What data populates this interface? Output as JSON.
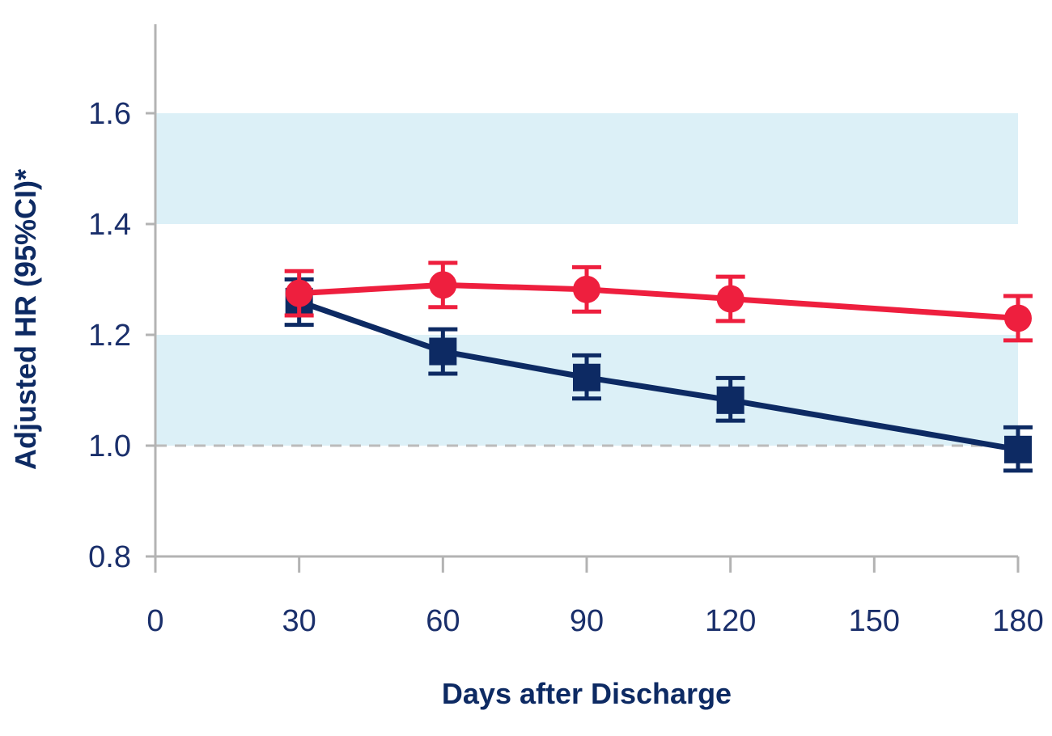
{
  "chart_data": {
    "type": "line",
    "xlabel": "Days after Discharge",
    "ylabel": "Adjusted HR (95%CI)*",
    "xlim": [
      0,
      180
    ],
    "ylim": [
      0.8,
      1.75
    ],
    "x_ticks": [
      0,
      30,
      60,
      90,
      120,
      150,
      180
    ],
    "x_tick_labels": [
      "0",
      "30",
      "60",
      "90",
      "120",
      "150",
      "180"
    ],
    "y_ticks": [
      0.8,
      1.0,
      1.2,
      1.4,
      1.6
    ],
    "y_tick_labels": [
      "0.8",
      "1.0",
      "1.2",
      "1.4",
      "1.6"
    ],
    "reference_line": {
      "y": 1.0,
      "style": "dashed",
      "color": "#bbbbbb"
    },
    "bands": [
      {
        "y0": 1.0,
        "y1": 1.2,
        "color": "#dcf0f7"
      },
      {
        "y0": 1.4,
        "y1": 1.6,
        "color": "#dcf0f7"
      }
    ],
    "grid": false,
    "legend": "none",
    "series": [
      {
        "marker": "circle",
        "color": "#ee1f3e",
        "x": [
          30,
          60,
          90,
          120,
          180
        ],
        "y": [
          1.275,
          1.29,
          1.282,
          1.265,
          1.23
        ],
        "ci_low": [
          1.235,
          1.25,
          1.242,
          1.225,
          1.19
        ],
        "ci_high": [
          1.315,
          1.33,
          1.322,
          1.305,
          1.27
        ]
      },
      {
        "marker": "square",
        "color": "#0d2a63",
        "x": [
          30,
          60,
          90,
          120,
          180
        ],
        "y": [
          1.26,
          1.17,
          1.123,
          1.082,
          0.993
        ],
        "ci_low": [
          1.218,
          1.13,
          1.085,
          1.045,
          0.955
        ],
        "ci_high": [
          1.3,
          1.21,
          1.163,
          1.122,
          1.033
        ]
      }
    ]
  }
}
